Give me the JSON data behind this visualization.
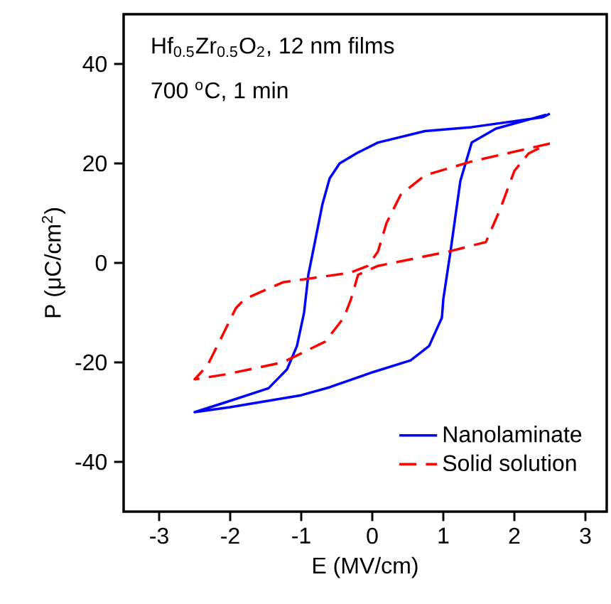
{
  "chart_data": {
    "type": "line",
    "xlabel": "E (MV/cm)",
    "ylabel": "P (μC/cm$^{2}$)",
    "annotations": [
      "Hf$_{0.5}$Zr$_{0.5}$O$_{2}$, 12 nm films",
      "700 $^{o}$C, 1 min"
    ],
    "xlim": [
      -3.5,
      3.3
    ],
    "ylim": [
      -50,
      50
    ],
    "xticks": [
      -3,
      -2,
      -1,
      0,
      1,
      2,
      3
    ],
    "yticks": [
      -40,
      -20,
      0,
      20,
      40
    ],
    "grid": false,
    "legend": "bottom right",
    "marker": "none",
    "series": [
      {
        "name": "Nanolaminate",
        "color": "#0000ff",
        "line_style": "solid",
        "x": [
          2.5,
          2.4,
          1.4,
          0.74,
          0.08,
          -0.2,
          -0.46,
          -0.6,
          -0.7,
          -0.82,
          -0.9,
          -0.96,
          -1.06,
          -1.2,
          -1.46,
          -2.06,
          -2.5,
          -2.0,
          -1.0,
          -0.6,
          0.0,
          0.54,
          0.8,
          0.98,
          1.0,
          1.1,
          1.24,
          1.4,
          1.74,
          2.45
        ],
        "values": [
          30,
          29.3,
          27.3,
          26.5,
          24.2,
          22.2,
          20,
          17,
          11.9,
          3.3,
          -2.4,
          -10,
          -16.7,
          -21.4,
          -25.2,
          -28,
          -30,
          -29,
          -26.6,
          -25,
          -22,
          -19.6,
          -16.7,
          -11,
          -7.3,
          2.2,
          16.5,
          24.2,
          27,
          29.8
        ]
      },
      {
        "name": "Solid solution",
        "color": "#ff0000",
        "line_style": "dashed",
        "x": [
          2.5,
          1.4,
          0.74,
          0.4,
          0.2,
          0.08,
          -0.06,
          -0.32,
          -1.26,
          -1.8,
          -1.92,
          -2.12,
          -2.32,
          -2.5,
          -2.06,
          -1.26,
          -0.66,
          -0.4,
          -0.3,
          -0.2,
          0.08,
          1.08,
          1.6,
          1.8,
          2.0,
          2.2,
          2.45
        ],
        "values": [
          24,
          20.4,
          17.6,
          13.7,
          8,
          2.3,
          -0.6,
          -2,
          -3.9,
          -7.3,
          -9.1,
          -14.9,
          -20.6,
          -23.4,
          -22.4,
          -20,
          -15.8,
          -11,
          -7.3,
          -2.4,
          -0.6,
          2.3,
          4.2,
          10.8,
          18.5,
          22,
          23.8
        ]
      }
    ]
  }
}
